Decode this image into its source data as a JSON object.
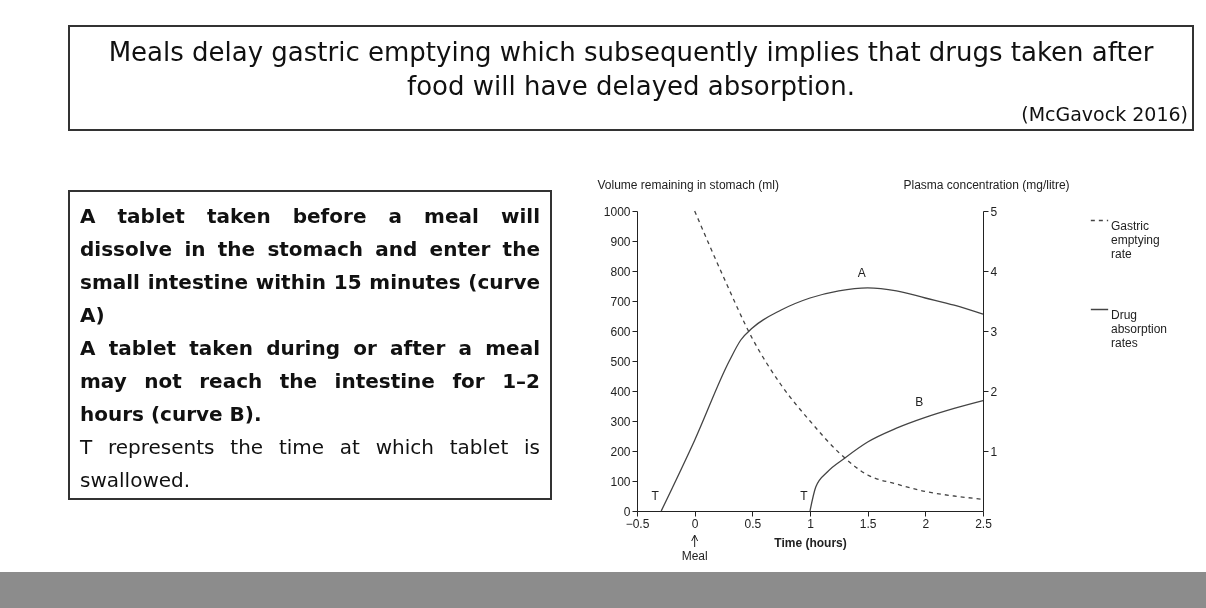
{
  "chart_data": {
    "type": "line",
    "title": "Meals delay gastric emptying which subsequently implies that drugs taken after food will have delayed absorption.",
    "xlabel": "Time (hours)",
    "ylabel": "Volume remaining in stomach (ml)",
    "y2label": "Plasma concentration (mg/litre)",
    "xlim": [
      -0.5,
      2.5
    ],
    "xticks": [
      {
        "value": -0.5,
        "label": "−0.5"
      },
      0,
      0.5,
      1,
      1.5,
      2,
      2.5
    ],
    "ylim": [
      0,
      1000
    ],
    "yticks": [
      0,
      100,
      200,
      300,
      400,
      500,
      600,
      700,
      800,
      900,
      1000
    ],
    "y2lim": [
      0,
      5
    ],
    "y2ticks": [
      1,
      2,
      3,
      4,
      5
    ],
    "grid": false,
    "legend": "right",
    "series": [
      {
        "name": "Gastric emptying rate",
        "color": "#444444",
        "line_style": "dashed",
        "x": [
          0,
          0.25,
          0.5,
          0.75,
          1,
          1.25,
          1.5,
          1.75,
          2,
          2.25,
          2.5
        ],
        "values": [
          1000,
          780,
          575,
          420,
          300,
          195,
          120,
          90,
          65,
          50,
          39
        ]
      },
      {
        "name": "Drug absorption rates",
        "color": "#444444",
        "line_style": "solid",
        "axis": "y2",
        "x": [
          -0.29,
          0,
          0.3,
          0.4,
          0.5,
          0.75,
          1,
          1.25,
          1.5,
          1.75,
          2,
          2.25,
          2.5
        ],
        "values": [
          0,
          1.18,
          2.5,
          2.85,
          3.05,
          3.35,
          3.55,
          3.67,
          3.72,
          3.67,
          3.55,
          3.43,
          3.28
        ]
      },
      {
        "color": "#444444",
        "line_style": "solid",
        "axis": "y2",
        "x": [
          1,
          1.05,
          1.15,
          1.3,
          1.5,
          1.75,
          2,
          2.25,
          2.5
        ],
        "values": [
          0,
          0.4,
          0.65,
          0.88,
          1.15,
          1.38,
          1.56,
          1.71,
          1.84
        ]
      }
    ],
    "annotations": [
      "(McGavock 2016)",
      "A tablet taken before a meal will dissolve in the stomach and enter the small intestine within 15 minutes (curve A)",
      "A tablet taken during or after a meal may not reach the intestine for 1–2 hours (curve B).",
      "T represents the time at which tablet is swallowed.",
      {
        "text": "A",
        "x": 1.5,
        "y": 744
      },
      {
        "text": "B",
        "x": 2.0,
        "y": 312
      },
      {
        "text": "T",
        "x": -0.29,
        "y": 0
      },
      {
        "text": "T",
        "x": 1,
        "y": 0
      },
      {
        "text": "Meal",
        "x": 0
      }
    ]
  }
}
